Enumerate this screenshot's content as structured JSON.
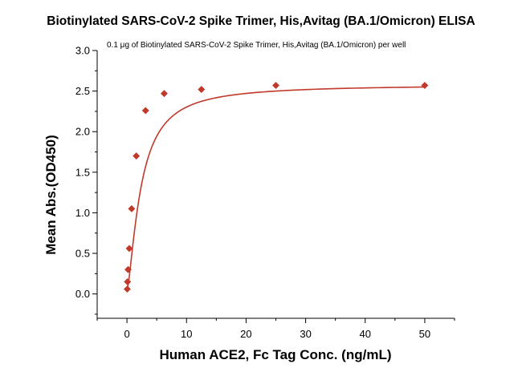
{
  "chart_data": {
    "type": "scatter",
    "title": "Biotinylated SARS-CoV-2 Spike Trimer, His,Avitag (BA.1/Omicron) ELISA",
    "subtitle": "0.1 μg of Biotinylated SARS-CoV-2 Spike Trimer, His,Avitag (BA.1/Omicron) per well",
    "xlabel": "Human ACE2, Fc Tag Conc. (ng/mL)",
    "ylabel": "Mean Abs.(OD450)",
    "xlim": [
      -5,
      55
    ],
    "ylim": [
      -0.3,
      3.0
    ],
    "x_ticks": [
      0,
      10,
      20,
      30,
      40,
      50
    ],
    "y_ticks": [
      0.0,
      0.5,
      1.0,
      1.5,
      2.0,
      2.5,
      3.0
    ],
    "x_tick_labels": [
      "0",
      "10",
      "20",
      "30",
      "40",
      "50"
    ],
    "y_tick_labels": [
      "0.0",
      "0.5",
      "1.0",
      "1.5",
      "2.0",
      "2.5",
      "3.0"
    ],
    "grid": false,
    "color": "#c0392b",
    "series": [
      {
        "x": [
          0.049,
          0.098,
          0.195,
          0.391,
          0.781,
          1.563,
          3.125,
          6.25,
          12.5,
          25,
          50
        ],
        "y": [
          0.06,
          0.15,
          0.3,
          0.56,
          1.05,
          1.7,
          2.26,
          2.47,
          2.52,
          2.57,
          2.57
        ]
      }
    ],
    "fit_curve": {
      "model": "four-parameter logistic",
      "bottom": 0.04,
      "top": 2.58,
      "ec50": 2.35,
      "hill": 1.45
    }
  }
}
